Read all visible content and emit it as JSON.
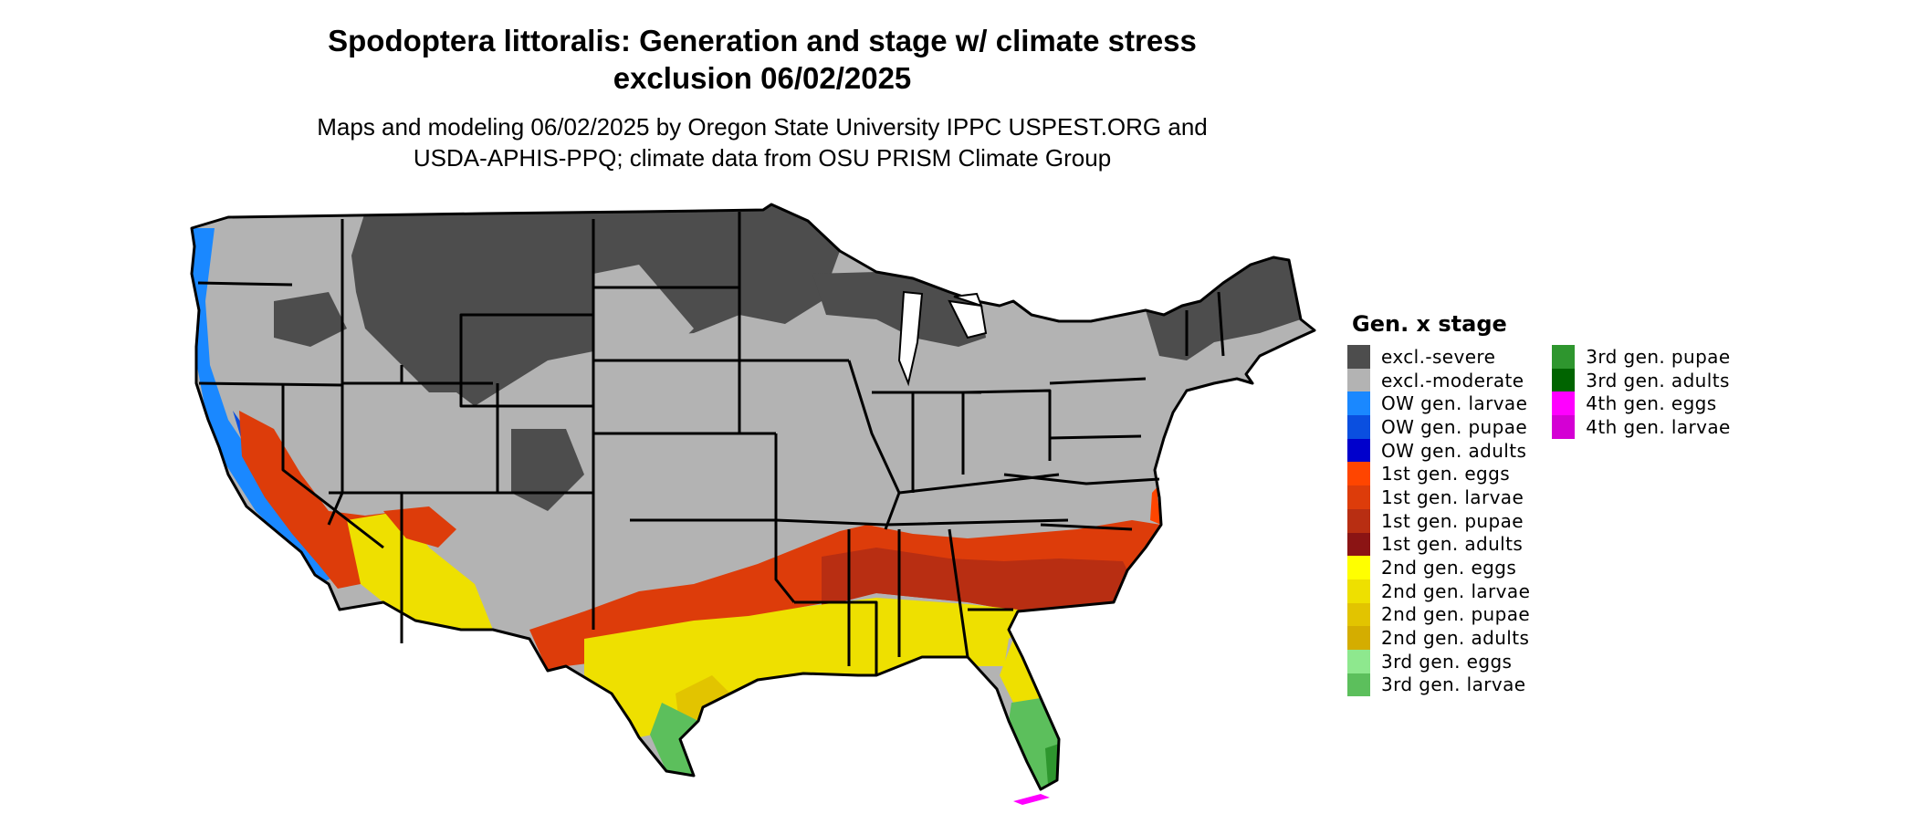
{
  "map": {
    "title_line1": "Spodoptera littoralis: Generation and stage w/ climate stress",
    "title_line2": "exclusion 06/02/2025",
    "subtitle_line1": "Maps and modeling 06/02/2025 by Oregon State University IPPC USPEST.ORG and",
    "subtitle_line2": "USDA-APHIS-PPQ; climate data from OSU PRISM Climate Group",
    "region": "Contiguous United States"
  },
  "legend": {
    "title": "Gen. x stage",
    "items": [
      {
        "label": "excl.-severe",
        "color": "#4d4d4d"
      },
      {
        "label": "excl.-moderate",
        "color": "#b3b3b3"
      },
      {
        "label": "OW gen. larvae",
        "color": "#1a88ff"
      },
      {
        "label": "OW gen. pupae",
        "color": "#0a4fe0"
      },
      {
        "label": "OW gen. adults",
        "color": "#0000cc"
      },
      {
        "label": "1st gen. eggs",
        "color": "#ff4500"
      },
      {
        "label": "1st gen. larvae",
        "color": "#dd3c0a"
      },
      {
        "label": "1st gen. pupae",
        "color": "#b82e12"
      },
      {
        "label": "1st gen. adults",
        "color": "#8b1414"
      },
      {
        "label": "2nd gen. eggs",
        "color": "#ffff00"
      },
      {
        "label": "2nd gen. larvae",
        "color": "#eee000"
      },
      {
        "label": "2nd gen. pupae",
        "color": "#e2c400"
      },
      {
        "label": "2nd gen. adults",
        "color": "#d4ad00"
      },
      {
        "label": "3rd gen. eggs",
        "color": "#8ee88e"
      },
      {
        "label": "3rd gen. larvae",
        "color": "#5cbf5c"
      },
      {
        "label": "3rd gen. pupae",
        "color": "#2e962e"
      },
      {
        "label": "3rd gen. adults",
        "color": "#006400"
      },
      {
        "label": "4th gen. eggs",
        "color": "#ff00ff"
      },
      {
        "label": "4th gen. larvae",
        "color": "#d400d4"
      }
    ]
  }
}
